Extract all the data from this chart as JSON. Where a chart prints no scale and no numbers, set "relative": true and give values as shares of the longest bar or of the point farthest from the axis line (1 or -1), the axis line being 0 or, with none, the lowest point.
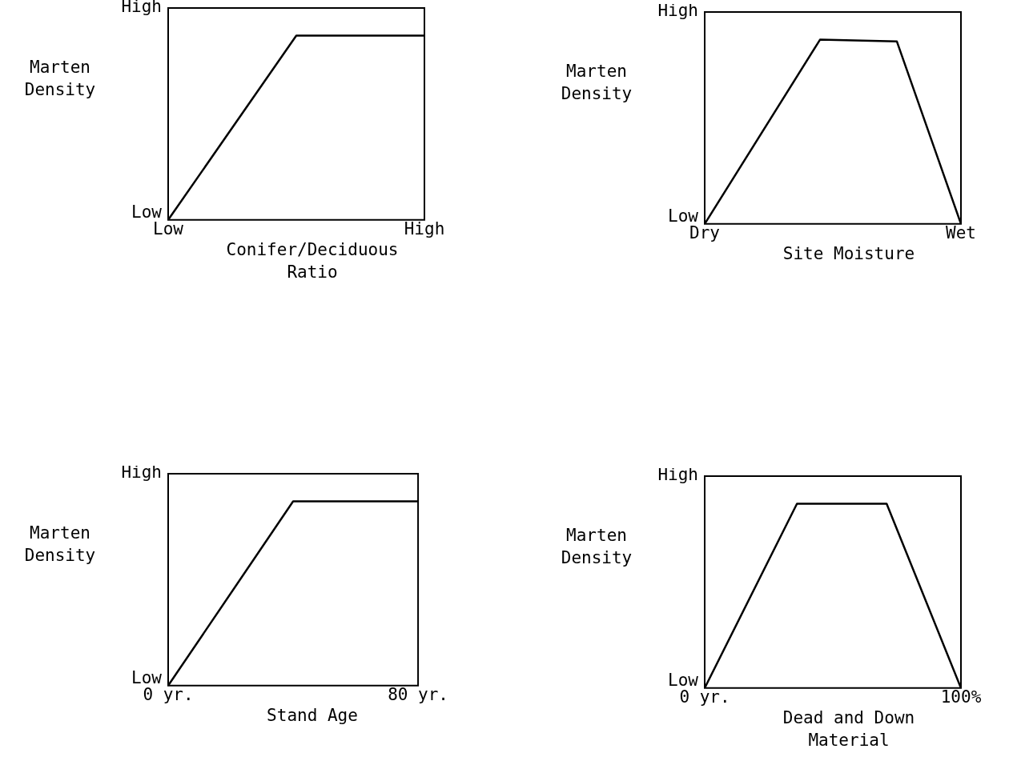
{
  "chart_data": [
    {
      "type": "line",
      "relative": true,
      "ylabel": "Marten Density",
      "xlabel": "Conifer/Deciduous Ratio",
      "annotations": [
        "High",
        "Low"
      ],
      "categories": [
        "Low",
        null,
        null,
        null,
        null,
        null,
        null,
        null,
        null,
        null,
        null,
        null,
        null,
        null,
        null,
        null,
        null,
        null,
        null,
        null,
        "High"
      ],
      "values": [
        0,
        null,
        null,
        null,
        null,
        null,
        null,
        null,
        null,
        null,
        1,
        null,
        null,
        null,
        null,
        null,
        null,
        null,
        null,
        null,
        1
      ],
      "color": "#000000",
      "legend": false,
      "marker": "none",
      "line_style": "solid"
    },
    {
      "type": "line",
      "relative": true,
      "ylabel": "Marten Density",
      "xlabel": "Site Moisture",
      "annotations": [
        "High",
        "Low"
      ],
      "categories": [
        "Dry",
        null,
        null,
        null,
        null,
        null,
        null,
        null,
        null,
        null,
        null,
        null,
        null,
        null,
        null,
        null,
        null,
        null,
        null,
        null,
        "Wet"
      ],
      "values": [
        0,
        null,
        null,
        null,
        null,
        null,
        null,
        null,
        null,
        1,
        null,
        null,
        null,
        null,
        null,
        0.99,
        null,
        null,
        null,
        null,
        0
      ],
      "color": "#000000",
      "legend": false,
      "marker": "none",
      "line_style": "solid"
    },
    {
      "type": "line",
      "relative": true,
      "ylabel": "Marten Density",
      "xlabel": "Stand Age",
      "annotations": [
        "High",
        "Low"
      ],
      "x": [
        0,
        40,
        80
      ],
      "values": [
        0,
        1,
        1
      ],
      "color": "#000000",
      "xlim": [
        0,
        80
      ],
      "xticks": [
        {
          "value": 0,
          "label": "0 yr."
        },
        {
          "value": 80,
          "label": "80 yr."
        }
      ],
      "legend": false,
      "marker": "none",
      "line_style": "solid"
    },
    {
      "type": "line",
      "relative": true,
      "ylabel": "Marten Density",
      "xlabel": "Dead and Down Material",
      "annotations": [
        "High",
        "Low"
      ],
      "x": [
        0,
        36,
        71,
        100
      ],
      "values": [
        0,
        1,
        1,
        0
      ],
      "color": "#000000",
      "xlim": [
        0,
        100
      ],
      "xticks": [
        {
          "value": 0,
          "label": "0 yr."
        },
        {
          "value": 100,
          "label": "100%"
        }
      ],
      "legend": false,
      "marker": "none",
      "line_style": "solid"
    }
  ]
}
